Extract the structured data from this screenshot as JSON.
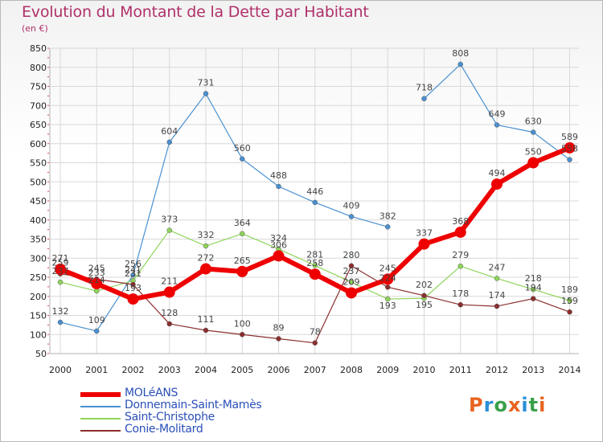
{
  "title": "Evolution du Montant de la Dette par Habitant",
  "unit_label": "(en €)",
  "logo_text": "Proxiti",
  "colors": {
    "title": "#b0306a",
    "grid": "#d8d8d8",
    "axis_text": "#222222",
    "legend_text": "#2a4fb8"
  },
  "chart_data": {
    "type": "line",
    "title": "Evolution du Montant de la Dette par Habitant",
    "ylabel": "(en €)",
    "xlabel": "",
    "x": [
      "2000",
      "2001",
      "2002",
      "2003",
      "2004",
      "2005",
      "2006",
      "2007",
      "2008",
      "2009",
      "2010",
      "2011",
      "2012",
      "2013",
      "2014"
    ],
    "ylim": [
      50,
      850
    ],
    "yticks": [
      50,
      100,
      150,
      200,
      250,
      300,
      350,
      400,
      450,
      500,
      550,
      600,
      650,
      700,
      750,
      800,
      850
    ],
    "grid": true,
    "legend_position": "bottom-left",
    "series": [
      {
        "name": "MOLéANS",
        "color": "#ee0000",
        "values": [
          271,
          233,
          193,
          211,
          272,
          265,
          306,
          258,
          209,
          245,
          337,
          368,
          494,
          550,
          589
        ],
        "labels": [
          "271",
          "233",
          "193",
          "211",
          "272",
          "265",
          "306",
          "258",
          "209",
          "245",
          "337",
          "368",
          "494",
          "550",
          "589"
        ]
      },
      {
        "name": "Donnemain-Saint-Mamès",
        "color": "#4a90d0",
        "values": [
          132,
          109,
          256,
          604,
          731,
          560,
          488,
          446,
          409,
          382,
          718,
          808,
          649,
          630,
          558
        ],
        "labels": [
          "132",
          "109",
          "256",
          "604",
          "731",
          "560",
          "488",
          "446",
          "409",
          "382",
          "718",
          "808",
          "649",
          "630",
          "558"
        ]
      },
      {
        "name": "Saint-Christophe",
        "color": "#8fd45a",
        "values": [
          237,
          214,
          241,
          373,
          332,
          364,
          324,
          281,
          237,
          193,
          195,
          279,
          247,
          218,
          189
        ],
        "labels": [
          "237",
          "214",
          "241",
          "373",
          "332",
          "364",
          "324",
          "281",
          "237",
          "193",
          "195",
          "279",
          "247",
          "218",
          "189"
        ]
      },
      {
        "name": "Conie-Molitard",
        "color": "#8b2e2e",
        "values": [
          259,
          245,
          231,
          128,
          111,
          100,
          89,
          78,
          280,
          224,
          202,
          178,
          174,
          194,
          159
        ],
        "labels": [
          "259",
          "245",
          "231",
          "128",
          "111",
          "100",
          "89",
          "78",
          "280",
          "224",
          "202",
          "178",
          "174",
          "194",
          "159"
        ]
      }
    ]
  }
}
